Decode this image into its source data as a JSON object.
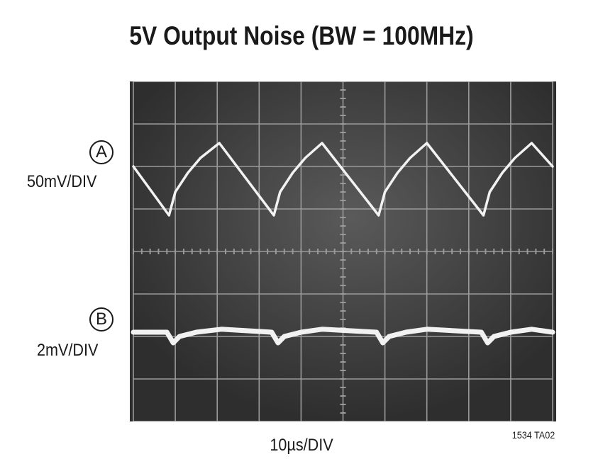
{
  "title": "5V Output Noise (BW = 100MHz)",
  "channels": [
    {
      "marker": "A",
      "scale": "50mV/DIV"
    },
    {
      "marker": "B",
      "scale": "2mV/DIV"
    }
  ],
  "x_scale": "10µs/DIV",
  "figure_id": "1534 TA02",
  "colors": {
    "screen": "#3a3a3a",
    "grid": "#9a9a9a",
    "trace": "#f2f2f2"
  },
  "chart_data": {
    "type": "line",
    "title": "5V Output Noise (BW = 100MHz)",
    "xlabel": "10µs/DIV",
    "grid": true,
    "x_divisions": 10,
    "y_divisions": 8,
    "xlim": [
      0,
      10
    ],
    "ylim": [
      0,
      8
    ],
    "series": [
      {
        "name": "A",
        "scale": "50mV/DIV",
        "points": [
          [
            0.0,
            6.0
          ],
          [
            0.85,
            4.85
          ],
          [
            1.0,
            5.4
          ],
          [
            1.3,
            5.85
          ],
          [
            1.6,
            6.2
          ],
          [
            2.05,
            6.55
          ],
          [
            3.35,
            4.85
          ],
          [
            3.5,
            5.4
          ],
          [
            3.8,
            5.85
          ],
          [
            4.1,
            6.2
          ],
          [
            4.5,
            6.55
          ],
          [
            5.85,
            4.85
          ],
          [
            6.0,
            5.4
          ],
          [
            6.3,
            5.85
          ],
          [
            6.6,
            6.2
          ],
          [
            7.0,
            6.55
          ],
          [
            8.35,
            4.85
          ],
          [
            8.5,
            5.4
          ],
          [
            8.8,
            5.85
          ],
          [
            9.1,
            6.2
          ],
          [
            9.5,
            6.55
          ],
          [
            10.0,
            6.0
          ]
        ]
      },
      {
        "name": "B",
        "scale": "2mV/DIV",
        "points": [
          [
            0.0,
            2.1
          ],
          [
            0.8,
            2.1
          ],
          [
            0.95,
            1.85
          ],
          [
            1.1,
            2.0
          ],
          [
            1.5,
            2.1
          ],
          [
            2.1,
            2.17
          ],
          [
            3.3,
            2.1
          ],
          [
            3.45,
            1.85
          ],
          [
            3.6,
            2.0
          ],
          [
            4.0,
            2.1
          ],
          [
            4.5,
            2.17
          ],
          [
            5.8,
            2.1
          ],
          [
            5.95,
            1.85
          ],
          [
            6.1,
            2.0
          ],
          [
            6.5,
            2.1
          ],
          [
            7.0,
            2.17
          ],
          [
            8.3,
            2.1
          ],
          [
            8.45,
            1.85
          ],
          [
            8.6,
            2.0
          ],
          [
            9.0,
            2.1
          ],
          [
            9.5,
            2.17
          ],
          [
            10.0,
            2.1
          ]
        ]
      }
    ]
  }
}
